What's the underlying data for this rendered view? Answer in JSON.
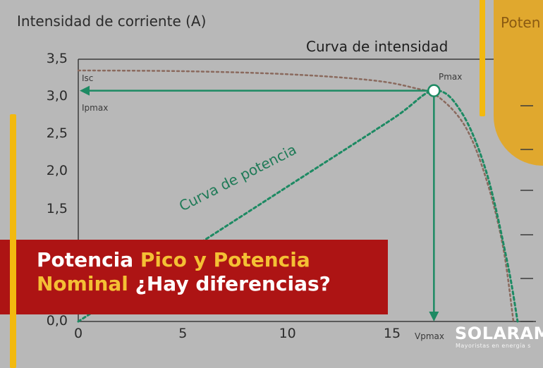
{
  "chart_data": {
    "type": "line",
    "title": "Curva de intensidad",
    "ylabel": "Intensidad de corriente (A)",
    "xlabel": "",
    "xlim": [
      0,
      21
    ],
    "ylim": [
      0,
      3.5
    ],
    "xticks": [
      "0",
      "5",
      "10",
      "15"
    ],
    "xtick_values": [
      0,
      5,
      10,
      15
    ],
    "yticks": [
      "0,0",
      "1,5",
      "2,0",
      "2,5",
      "3,0",
      "3,5"
    ],
    "ytick_values": [
      0.0,
      1.5,
      2.0,
      2.5,
      3.0,
      3.5
    ],
    "series": [
      {
        "name": "Curva de intensidad",
        "color": "#8a6a5e",
        "x": [
          0,
          5,
          10,
          14,
          16,
          17.2,
          18.5,
          19.5,
          20.3,
          20.8
        ],
        "y": [
          3.35,
          3.34,
          3.3,
          3.22,
          3.12,
          3.0,
          2.6,
          1.9,
          1.0,
          0.0
        ]
      },
      {
        "name": "Curva de potencia",
        "color": "#1d8a63",
        "x": [
          0,
          5,
          10,
          15,
          17,
          18.3,
          19.5,
          20.5,
          21
        ],
        "y": [
          0,
          0.9,
          1.8,
          2.7,
          3.08,
          2.8,
          2.0,
          0.8,
          0.0
        ]
      }
    ],
    "points": {
      "pmax": {
        "x": 17,
        "y": 3.08,
        "label": "Pmax"
      },
      "isc": {
        "label": "Isc"
      },
      "ipmax": {
        "label": "Ipmax"
      },
      "vpmax": {
        "label": "Vpmax"
      }
    },
    "annotation_power": "Curva de potencia"
  },
  "tab_text": "Poten",
  "banner": {
    "line1_white": "Potencia ",
    "line1_yellow": "Pico y Potencia",
    "line2_yellow": "Nominal",
    "line2_white": " ¿Hay diferencias?"
  },
  "logo": {
    "name": "SOLARAM",
    "tagline": "Mayoristas en energía s"
  },
  "colors": {
    "arrow": "#1d8a63",
    "banner": "#ad1414",
    "accent_yellow": "#f2b90f"
  }
}
